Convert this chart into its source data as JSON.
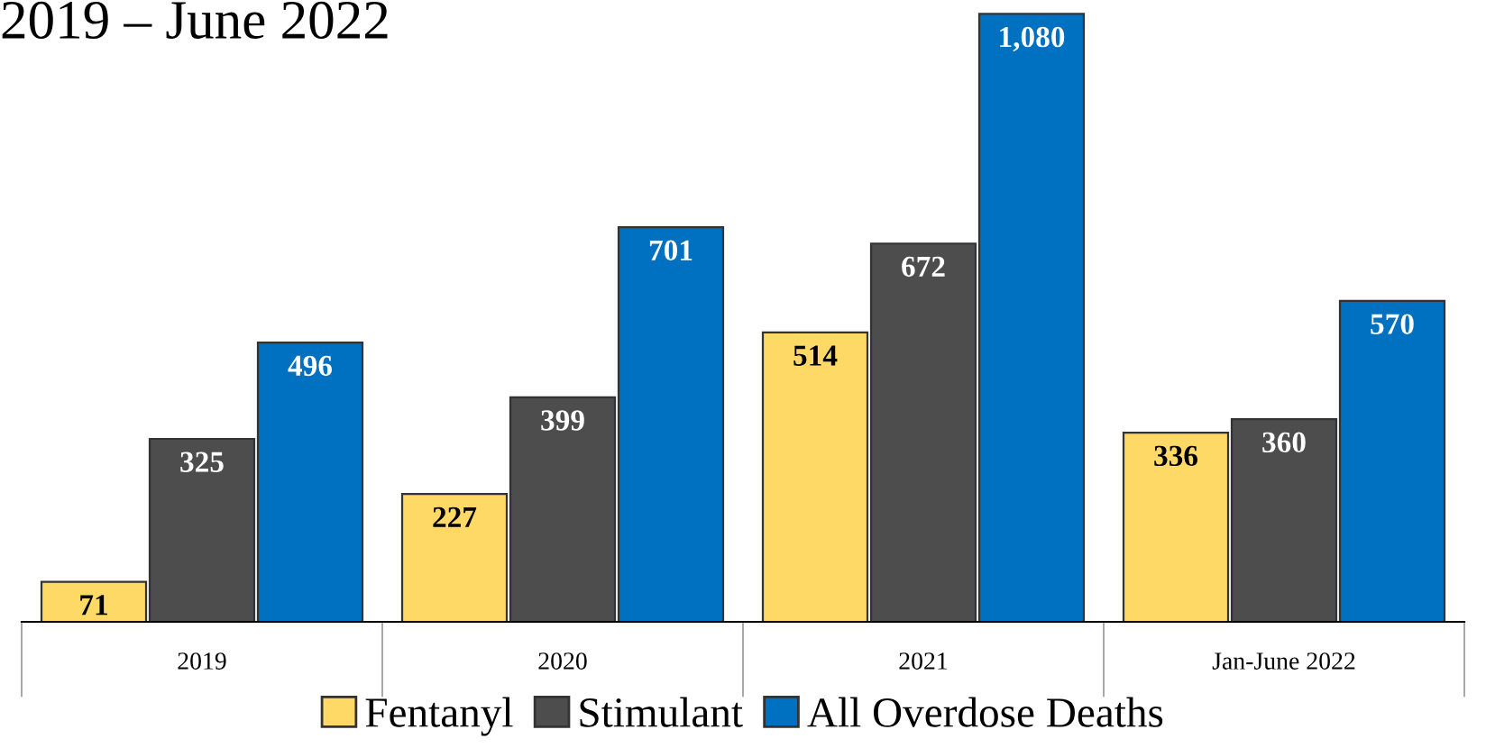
{
  "chart_data": {
    "type": "bar",
    "title": "2019 – June 2022",
    "categories": [
      "2019",
      "2020",
      "2021",
      "Jan-June 2022"
    ],
    "series": [
      {
        "name": "Fentanyl",
        "color": "#ffd966",
        "values": [
          71,
          227,
          514,
          336
        ],
        "value_labels": [
          "71",
          "227",
          "514",
          "336"
        ]
      },
      {
        "name": "Stimulant",
        "color": "#4d4d4d",
        "values": [
          325,
          399,
          672,
          360
        ],
        "value_labels": [
          "325",
          "399",
          "672",
          "360"
        ]
      },
      {
        "name": "All Overdose Deaths",
        "color": "#0070c0",
        "values": [
          496,
          701,
          1080,
          570
        ],
        "value_labels": [
          "496",
          "701",
          "1,080",
          "570"
        ]
      }
    ],
    "legend": "bottom",
    "grid": false
  }
}
